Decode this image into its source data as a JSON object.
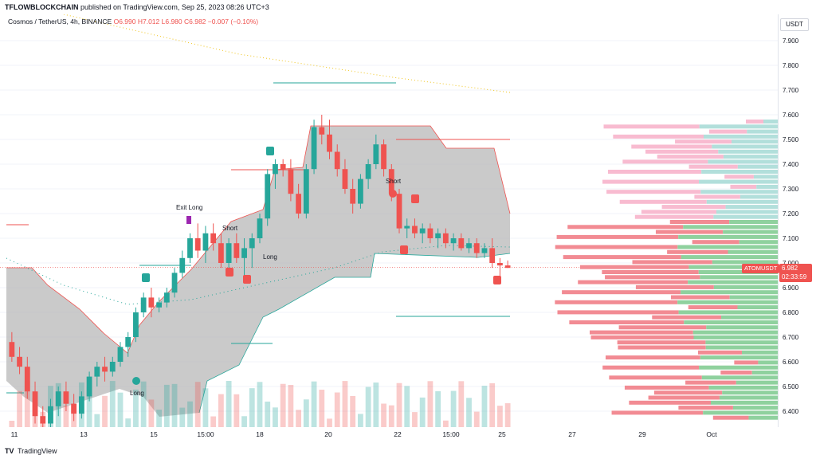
{
  "header": {
    "author": "TFLOWBLOCKCHAIN",
    "published_text": "published on TradingView.com, Sep 25, 2023 08:26 UTC+3"
  },
  "symbol_line": {
    "name": "Cosmos / TetherUS, 4h, BINANCE",
    "ohlc": "O6.990 H7.012 L6.980 C6.982 −0.007 (−0.10%)"
  },
  "currency": "USDT",
  "price_axis": [
    "7.900",
    "7.800",
    "7.700",
    "7.600",
    "7.500",
    "7.400",
    "7.300",
    "7.200",
    "7.100",
    "7.000",
    "6.900",
    "6.800",
    "6.700",
    "6.600",
    "6.500",
    "6.400"
  ],
  "time_axis": [
    "11",
    "13",
    "15",
    "15:00",
    "18",
    "20",
    "22",
    "15:00",
    "25",
    "27",
    "29",
    "Oct"
  ],
  "current_price": {
    "symbol": "ATOMUSDT",
    "price": "6.982",
    "countdown": "02:33:59"
  },
  "annotations": {
    "exit_long": "Exit Long",
    "short_1": "Short",
    "short_2": "Short",
    "long_1": "Long",
    "long_2": "Long"
  },
  "footer": {
    "brand": "TradingView"
  },
  "colors": {
    "up": "#26a69a",
    "down": "#ef5350",
    "band": "#b8b8b8",
    "vp_green": "#8fd19e",
    "vp_red": "#f28b93",
    "vp_teal": "#b2dfdb",
    "vp_pink": "#f8bbd0"
  },
  "chart_data": {
    "type": "candlestick",
    "ylim": [
      6.32,
      7.98
    ],
    "candles": [
      [
        6.68,
        6.72,
        6.6,
        6.62
      ],
      [
        6.62,
        6.66,
        6.55,
        6.58
      ],
      [
        6.58,
        6.62,
        6.45,
        6.48
      ],
      [
        6.48,
        6.52,
        6.35,
        6.38
      ],
      [
        6.38,
        6.42,
        6.32,
        6.35
      ],
      [
        6.35,
        6.45,
        6.33,
        6.42
      ],
      [
        6.42,
        6.5,
        6.38,
        6.48
      ],
      [
        6.48,
        6.52,
        6.4,
        6.43
      ],
      [
        6.43,
        6.47,
        6.36,
        6.39
      ],
      [
        6.39,
        6.48,
        6.37,
        6.46
      ],
      [
        6.46,
        6.56,
        6.44,
        6.54
      ],
      [
        6.54,
        6.6,
        6.5,
        6.58
      ],
      [
        6.58,
        6.62,
        6.52,
        6.56
      ],
      [
        6.56,
        6.62,
        6.54,
        6.6
      ],
      [
        6.6,
        6.68,
        6.58,
        6.66
      ],
      [
        6.66,
        6.72,
        6.62,
        6.7
      ],
      [
        6.7,
        6.82,
        6.68,
        6.8
      ],
      [
        6.8,
        6.88,
        6.78,
        6.86
      ],
      [
        6.86,
        6.9,
        6.78,
        6.82
      ],
      [
        6.82,
        6.86,
        6.8,
        6.84
      ],
      [
        6.84,
        6.9,
        6.82,
        6.88
      ],
      [
        6.88,
        6.98,
        6.86,
        6.96
      ],
      [
        6.96,
        7.05,
        6.94,
        7.02
      ],
      [
        7.02,
        7.12,
        7.0,
        7.1
      ],
      [
        7.1,
        7.16,
        7.02,
        7.05
      ],
      [
        7.05,
        7.15,
        7.0,
        7.12
      ],
      [
        7.12,
        7.16,
        7.05,
        7.08
      ],
      [
        7.08,
        7.12,
        6.98,
        7.0
      ],
      [
        7.0,
        7.1,
        6.96,
        7.08
      ],
      [
        7.08,
        7.12,
        7.0,
        7.02
      ],
      [
        7.02,
        7.1,
        6.95,
        7.06
      ],
      [
        7.06,
        7.12,
        6.98,
        7.1
      ],
      [
        7.1,
        7.2,
        7.08,
        7.18
      ],
      [
        7.18,
        7.38,
        7.15,
        7.36
      ],
      [
        7.36,
        7.42,
        7.3,
        7.4
      ],
      [
        7.4,
        7.42,
        7.35,
        7.38
      ],
      [
        7.38,
        7.42,
        7.25,
        7.28
      ],
      [
        7.28,
        7.32,
        7.18,
        7.2
      ],
      [
        7.2,
        7.4,
        7.18,
        7.38
      ],
      [
        7.38,
        7.58,
        7.36,
        7.55
      ],
      [
        7.55,
        7.6,
        7.48,
        7.52
      ],
      [
        7.52,
        7.58,
        7.42,
        7.45
      ],
      [
        7.45,
        7.48,
        7.35,
        7.38
      ],
      [
        7.38,
        7.42,
        7.28,
        7.3
      ],
      [
        7.3,
        7.34,
        7.2,
        7.24
      ],
      [
        7.24,
        7.36,
        7.22,
        7.34
      ],
      [
        7.34,
        7.42,
        7.3,
        7.4
      ],
      [
        7.4,
        7.52,
        7.38,
        7.48
      ],
      [
        7.48,
        7.5,
        7.35,
        7.38
      ],
      [
        7.38,
        7.4,
        7.25,
        7.28
      ],
      [
        7.28,
        7.3,
        7.12,
        7.14
      ],
      [
        7.14,
        7.18,
        7.1,
        7.15
      ],
      [
        7.15,
        7.18,
        7.1,
        7.12
      ],
      [
        7.12,
        7.16,
        7.08,
        7.14
      ],
      [
        7.14,
        7.16,
        7.08,
        7.1
      ],
      [
        7.1,
        7.14,
        7.06,
        7.12
      ],
      [
        7.12,
        7.14,
        7.06,
        7.08
      ],
      [
        7.08,
        7.12,
        7.05,
        7.1
      ],
      [
        7.1,
        7.12,
        7.05,
        7.06
      ],
      [
        7.06,
        7.1,
        7.04,
        7.08
      ],
      [
        7.08,
        7.1,
        7.02,
        7.04
      ],
      [
        7.04,
        7.08,
        7.02,
        7.06
      ],
      [
        7.06,
        7.1,
        6.98,
        7.0
      ],
      [
        7.0,
        7.02,
        6.93,
        6.99
      ],
      [
        6.99,
        7.01,
        6.98,
        6.98
      ]
    ]
  }
}
